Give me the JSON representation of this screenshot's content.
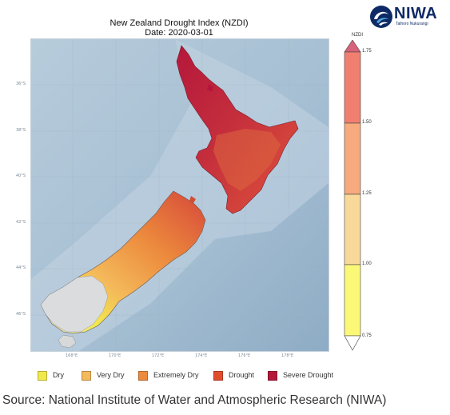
{
  "map": {
    "title_line1": "New Zealand Drought Index (NZDI)",
    "title_line2": "Date: 2020-03-01",
    "latitude_labels": [
      "36°S",
      "38°S",
      "40°S",
      "42°S",
      "44°S",
      "46°S"
    ],
    "longitude_labels": [
      "168°E",
      "170°E",
      "172°E",
      "174°E",
      "176°E",
      "178°E"
    ],
    "colors": {
      "sea_light": "#b9cedd",
      "sea_deep": "#8eacc5",
      "land_grey": "#d4d6d8",
      "dry": "#f7ef57",
      "very_dry": "#f7bd66",
      "extremely_dry": "#e8843d",
      "drought": "#d44e34",
      "severe_drought": "#b3264a"
    }
  },
  "colorbar": {
    "title": "NZDI",
    "ticks": [
      "1.75",
      "1.50",
      "1.25",
      "1.00",
      "0.75"
    ],
    "band_colors": [
      "#d8627a",
      "#f17f6f",
      "#f7aa7d",
      "#f9d99a",
      "#fbf878"
    ]
  },
  "legend": {
    "items": [
      {
        "label": "Dry",
        "color": "#f1e94c"
      },
      {
        "label": "Very Dry",
        "color": "#f4b95a"
      },
      {
        "label": "Extremely Dry",
        "color": "#ec8a3d"
      },
      {
        "label": "Drought",
        "color": "#e24d2c"
      },
      {
        "label": "Severe Drought",
        "color": "#b5173b"
      }
    ]
  },
  "logo": {
    "name": "NIWA",
    "tagline": "Taihoro Nukurangi"
  },
  "source_text": "Source: National Institute of Water and Atmospheric Research (NIWA)"
}
